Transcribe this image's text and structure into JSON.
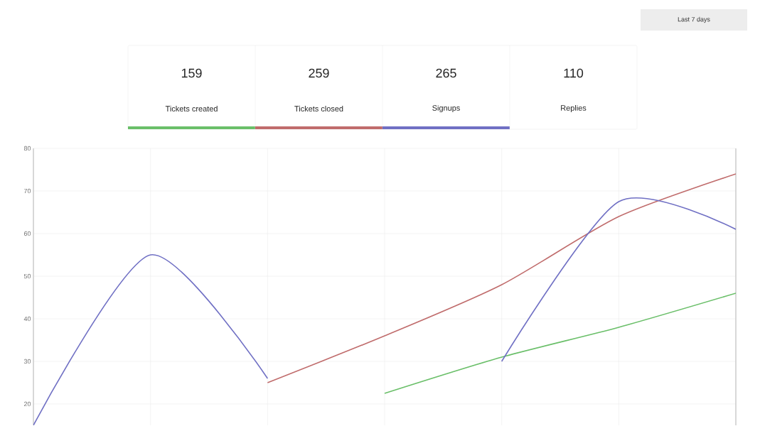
{
  "chart_data": [
    {
      "type": "other",
      "categories": [
        "Tickets created",
        "Tickets closed",
        "Signups",
        "Replies"
      ],
      "value_labels": [
        "159",
        "259",
        "265",
        "110"
      ],
      "colors": [
        "#6abf69",
        "#c06c6c",
        "#7070c4",
        null
      ],
      "annotations": [
        "Last 7 days"
      ]
    },
    {
      "type": "line",
      "categories": [
        null,
        null,
        null,
        null,
        null,
        null,
        null
      ],
      "series": [
        {
          "color": "#6abf69",
          "values": [
            null,
            null,
            null,
            22.5,
            31,
            38,
            46
          ]
        },
        {
          "color": "#c06c6c",
          "values": [
            null,
            null,
            25,
            36,
            48,
            64,
            74
          ]
        },
        {
          "color": "#7070c4",
          "values": [
            15,
            55,
            26,
            null,
            null,
            null,
            null
          ]
        },
        {
          "color": "#7070c4",
          "values": [
            null,
            null,
            null,
            null,
            30,
            67.5,
            61
          ]
        }
      ],
      "ylim": [
        15,
        80
      ],
      "yticks": [
        20,
        30,
        40,
        50,
        60,
        70,
        80
      ],
      "grid": true,
      "tick_labels": "y"
    }
  ]
}
